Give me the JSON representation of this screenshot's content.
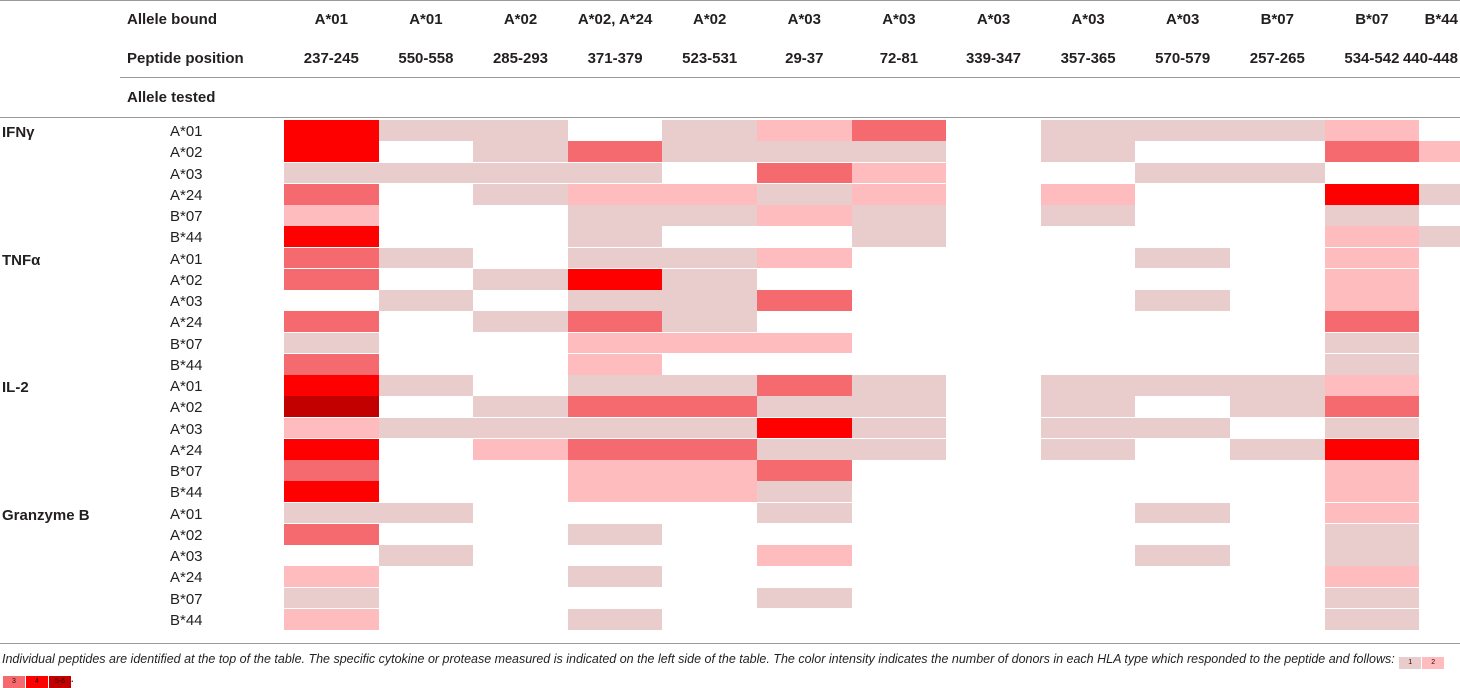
{
  "header": {
    "allele_bound_label": "Allele bound",
    "peptide_position_label": "Peptide position",
    "allele_tested_label": "Allele tested"
  },
  "peptides": [
    {
      "allele_bound": "A*01",
      "position": "237-245"
    },
    {
      "allele_bound": "A*01",
      "position": "550-558"
    },
    {
      "allele_bound": "A*02",
      "position": "285-293"
    },
    {
      "allele_bound": "A*02, A*24",
      "position": "371-379"
    },
    {
      "allele_bound": "A*02",
      "position": "523-531"
    },
    {
      "allele_bound": "A*03",
      "position": "29-37"
    },
    {
      "allele_bound": "A*03",
      "position": "72-81"
    },
    {
      "allele_bound": "A*03",
      "position": "339-347"
    },
    {
      "allele_bound": "A*03",
      "position": "357-365"
    },
    {
      "allele_bound": "A*03",
      "position": "570-579"
    },
    {
      "allele_bound": "B*07",
      "position": "257-265"
    },
    {
      "allele_bound": "B*07",
      "position": "534-542"
    },
    {
      "allele_bound": "B*44",
      "position": "440-448"
    }
  ],
  "groups": [
    {
      "name": "IFNγ",
      "rows": [
        {
          "allele": "A*01",
          "levels": [
            4,
            1,
            1,
            0,
            1,
            2,
            3,
            0,
            1,
            1,
            1,
            2,
            0
          ]
        },
        {
          "allele": "A*02",
          "levels": [
            4,
            0,
            1,
            3,
            1,
            1,
            1,
            0,
            1,
            0,
            0,
            3,
            2
          ]
        },
        {
          "allele": "A*03",
          "levels": [
            1,
            1,
            1,
            1,
            0,
            3,
            2,
            0,
            0,
            1,
            1,
            0,
            0
          ]
        },
        {
          "allele": "A*24",
          "levels": [
            3,
            0,
            1,
            2,
            2,
            1,
            2,
            0,
            2,
            0,
            0,
            4,
            1
          ]
        },
        {
          "allele": "B*07",
          "levels": [
            2,
            0,
            0,
            1,
            1,
            2,
            1,
            0,
            1,
            0,
            0,
            1,
            0
          ]
        },
        {
          "allele": "B*44",
          "levels": [
            4,
            0,
            0,
            1,
            0,
            0,
            1,
            0,
            0,
            0,
            0,
            2,
            1
          ]
        }
      ]
    },
    {
      "name": "TNFα",
      "rows": [
        {
          "allele": "A*01",
          "levels": [
            3,
            1,
            0,
            1,
            1,
            2,
            0,
            0,
            0,
            1,
            0,
            2,
            0
          ]
        },
        {
          "allele": "A*02",
          "levels": [
            3,
            0,
            1,
            4,
            1,
            0,
            0,
            0,
            0,
            0,
            0,
            2,
            0
          ]
        },
        {
          "allele": "A*03",
          "levels": [
            0,
            1,
            0,
            1,
            1,
            3,
            0,
            0,
            0,
            1,
            0,
            2,
            0
          ]
        },
        {
          "allele": "A*24",
          "levels": [
            3,
            0,
            1,
            3,
            1,
            0,
            0,
            0,
            0,
            0,
            0,
            3,
            0
          ]
        },
        {
          "allele": "B*07",
          "levels": [
            1,
            0,
            0,
            2,
            2,
            2,
            0,
            0,
            0,
            0,
            0,
            1,
            0
          ]
        },
        {
          "allele": "B*44",
          "levels": [
            3,
            0,
            0,
            2,
            0,
            0,
            0,
            0,
            0,
            0,
            0,
            1,
            0
          ]
        }
      ]
    },
    {
      "name": "IL-2",
      "rows": [
        {
          "allele": "A*01",
          "levels": [
            4,
            1,
            0,
            1,
            1,
            3,
            1,
            0,
            1,
            1,
            1,
            2,
            0
          ]
        },
        {
          "allele": "A*02",
          "levels": [
            5,
            0,
            1,
            3,
            3,
            1,
            1,
            0,
            1,
            0,
            1,
            3,
            0
          ]
        },
        {
          "allele": "A*03",
          "levels": [
            2,
            1,
            1,
            1,
            1,
            4,
            1,
            0,
            1,
            1,
            0,
            1,
            0
          ]
        },
        {
          "allele": "A*24",
          "levels": [
            4,
            0,
            2,
            3,
            3,
            1,
            1,
            0,
            1,
            0,
            1,
            4,
            0
          ]
        },
        {
          "allele": "B*07",
          "levels": [
            3,
            0,
            0,
            2,
            2,
            3,
            0,
            0,
            0,
            0,
            0,
            2,
            0
          ]
        },
        {
          "allele": "B*44",
          "levels": [
            4,
            0,
            0,
            2,
            2,
            1,
            0,
            0,
            0,
            0,
            0,
            2,
            0
          ]
        }
      ]
    },
    {
      "name": "Granzyme B",
      "rows": [
        {
          "allele": "A*01",
          "levels": [
            1,
            1,
            0,
            0,
            0,
            1,
            0,
            0,
            0,
            1,
            0,
            2,
            0
          ]
        },
        {
          "allele": "A*02",
          "levels": [
            3,
            0,
            0,
            1,
            0,
            0,
            0,
            0,
            0,
            0,
            0,
            1,
            0
          ]
        },
        {
          "allele": "A*03",
          "levels": [
            0,
            1,
            0,
            0,
            0,
            2,
            0,
            0,
            0,
            1,
            0,
            1,
            0
          ]
        },
        {
          "allele": "A*24",
          "levels": [
            2,
            0,
            0,
            1,
            0,
            0,
            0,
            0,
            0,
            0,
            0,
            2,
            0
          ]
        },
        {
          "allele": "B*07",
          "levels": [
            1,
            0,
            0,
            0,
            0,
            1,
            0,
            0,
            0,
            0,
            0,
            1,
            0
          ]
        },
        {
          "allele": "B*44",
          "levels": [
            2,
            0,
            0,
            1,
            0,
            0,
            0,
            0,
            0,
            0,
            0,
            1,
            0
          ]
        }
      ]
    }
  ],
  "level_colors": {
    "0": "#ffffff",
    "1": "#e9cccc",
    "2": "#ffbcbe",
    "3": "#f46a6e",
    "4": "#ff0000",
    "5": "#c30000"
  },
  "caption": {
    "text": "Individual peptides are identified at the top of the table. The specific cytokine or protease measured is indicated on the left side of the table. The color intensity indicates the number of donors in each HLA type which responded to the peptide and follows:",
    "legend": [
      {
        "label": "1",
        "level": 1
      },
      {
        "label": "2",
        "level": 2
      },
      {
        "label": "3",
        "level": 3
      },
      {
        "label": "4",
        "level": 4
      },
      {
        "label": "5-6",
        "level": 5
      }
    ],
    "end": "."
  }
}
